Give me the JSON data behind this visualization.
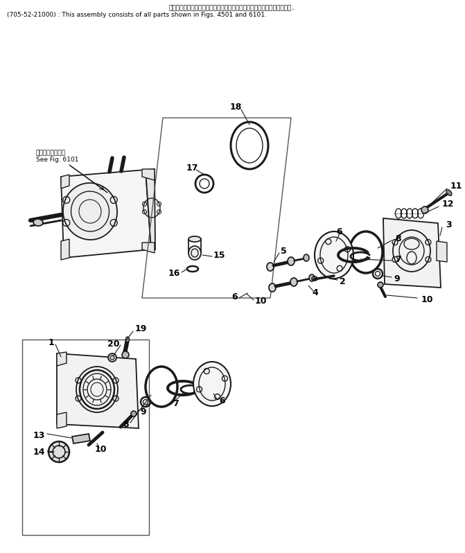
{
  "title_line1": "このアセンブリの構成部品は第４５０１図および第６１０１図を含みます.",
  "title_line2": "(705-52-21000) : This assembly consists of all parts shown in Figs. 4501 and 6101.",
  "see_fig_jp": "第６１０１図参照",
  "see_fig_en": "See Fig. 6101",
  "bg_color": "#ffffff",
  "lc": "#1a1a1a",
  "tc": "#000000"
}
